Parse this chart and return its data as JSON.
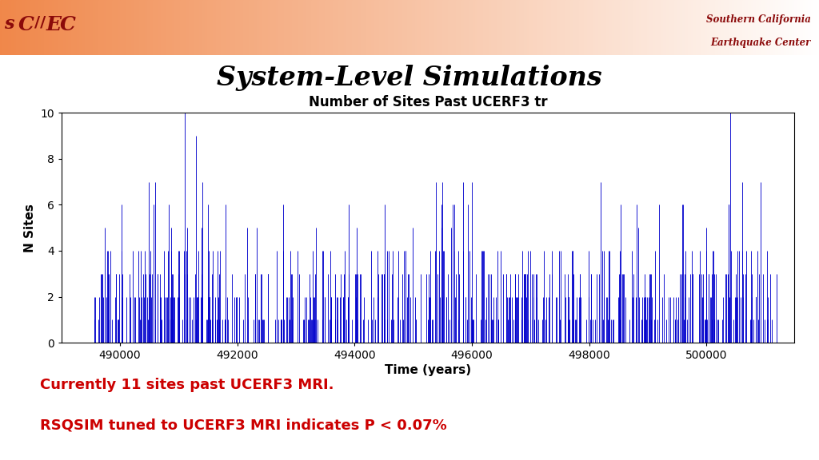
{
  "title_main": "System-Level Simulations",
  "chart_title": "Number of Sites Past UCERF3 tr",
  "xlabel": "Time (years)",
  "ylabel": "N Sites",
  "xlim": [
    489000,
    501500
  ],
  "ylim": [
    0,
    10
  ],
  "yticks": [
    0,
    2,
    4,
    6,
    8,
    10
  ],
  "xticks": [
    490000,
    492000,
    494000,
    496000,
    498000,
    500000
  ],
  "line_color": "#0000CC",
  "background_color": "#FFFFFF",
  "text_red": "#8B0000",
  "annotation_line1": "Currently 11 sites past UCERF3 MRI.",
  "annotation_line2": "RSQSIM tuned to UCERF3 MRI indicates P < 0.07%",
  "x_start": 489500,
  "x_end": 501200,
  "n_events": 700,
  "seed": 42
}
